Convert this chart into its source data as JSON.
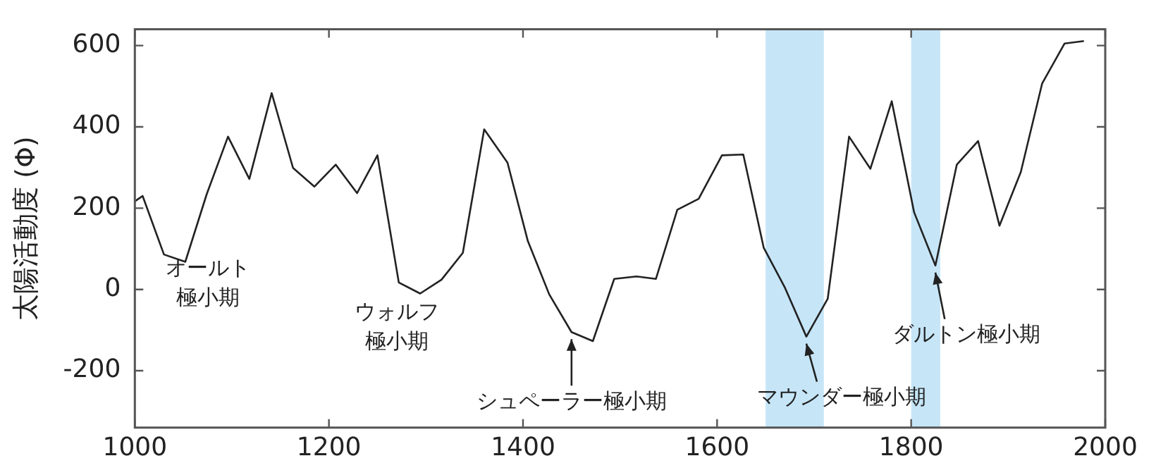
{
  "chart_data": {
    "type": "line",
    "ylabel": "太陽活動度 (Φ)",
    "x": [
      1000,
      1008,
      1030,
      1052,
      1074,
      1096,
      1118,
      1141,
      1163,
      1185,
      1207,
      1229,
      1250,
      1272,
      1294,
      1316,
      1338,
      1360,
      1384,
      1405,
      1427,
      1450,
      1472,
      1494,
      1517,
      1537,
      1559,
      1581,
      1605,
      1627,
      1648,
      1670,
      1692,
      1714,
      1736,
      1758,
      1780,
      1803,
      1825,
      1847,
      1869,
      1891,
      1913,
      1935,
      1958,
      1978
    ],
    "series": [
      {
        "color": "#222222",
        "values": [
          217,
          230,
          86,
          68,
          234,
          376,
          272,
          483,
          299,
          253,
          307,
          237,
          330,
          17,
          -10,
          24,
          90,
          394,
          312,
          119,
          -12,
          -105,
          -127,
          26,
          32,
          26,
          196,
          223,
          330,
          332,
          103,
          4,
          -116,
          -23,
          376,
          297,
          463,
          190,
          59,
          307,
          365,
          157,
          289,
          507,
          605,
          611
        ]
      }
    ],
    "xlim": [
      1000,
      2000
    ],
    "xticks": [
      1000,
      1200,
      1400,
      1600,
      1800,
      2000
    ],
    "ylim": [
      -340,
      640
    ],
    "yticks": [
      -200,
      0,
      200,
      400,
      600
    ],
    "grid": false,
    "legend": false,
    "marker": "none",
    "line_style": "solid",
    "bands": [
      {
        "axis": "x",
        "from": 1650,
        "to": 1710,
        "color": "#c6e6f8"
      },
      {
        "axis": "x",
        "from": 1800,
        "to": 1830,
        "color": "#c6e6f8"
      }
    ],
    "annotations": [
      "オールト極小期",
      "ウォルフ極小期",
      {
        "text": "シュペーラー極小期",
        "x": 1450,
        "y": -105
      },
      {
        "text": "マウンダー極小期",
        "x": 1692,
        "y": -116
      },
      {
        "text": "ダルトン極小期",
        "x": 1825,
        "y": 59
      }
    ]
  }
}
